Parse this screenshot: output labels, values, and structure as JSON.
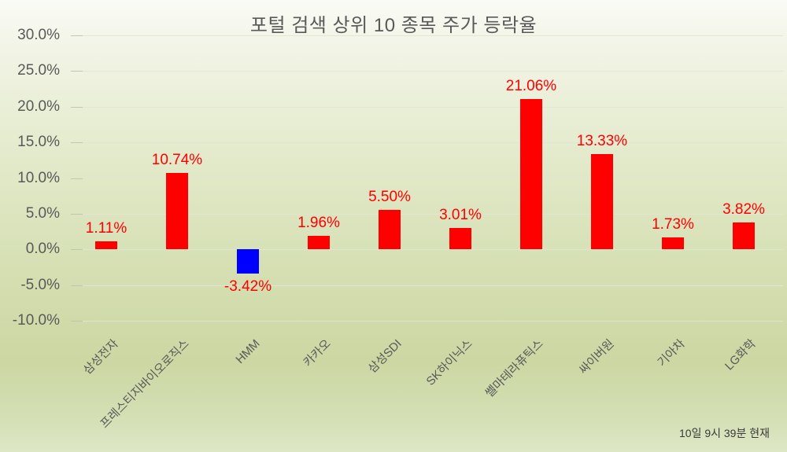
{
  "chart_data": {
    "type": "bar",
    "title": "포털 검색 상위 10 종목 주가 등락율",
    "categories": [
      "삼성전자",
      "프레스티지바이오로직스",
      "HMM",
      "카카오",
      "삼성SDI",
      "SK하이닉스",
      "쎌마테라퓨틱스",
      "싸이버원",
      "기아차",
      "LG화학"
    ],
    "values": [
      1.11,
      10.74,
      -3.42,
      1.96,
      5.5,
      3.01,
      21.06,
      13.33,
      1.73,
      3.82
    ],
    "value_labels": [
      "1.11%",
      "10.74%",
      "-3.42%",
      "1.96%",
      "5.50%",
      "3.01%",
      "21.06%",
      "13.33%",
      "1.73%",
      "3.82%"
    ],
    "xlabel": "",
    "ylabel": "",
    "ylim": [
      -10,
      30
    ],
    "ytick_step": 5,
    "ytick_labels": [
      "30.0%",
      "25.0%",
      "20.0%",
      "15.0%",
      "10.0%",
      "5.0%",
      "0.0%",
      "-5.0%",
      "-10.0%"
    ],
    "grid": true,
    "legend": "none",
    "positive_bar_color": "#ff0000",
    "negative_bar_color": "#0000ff",
    "value_label_color": "#ff0000",
    "axis_text_color": "#595959",
    "title_color": "#595959"
  },
  "footer": {
    "timestamp": "10일 9시 39분 현재"
  }
}
